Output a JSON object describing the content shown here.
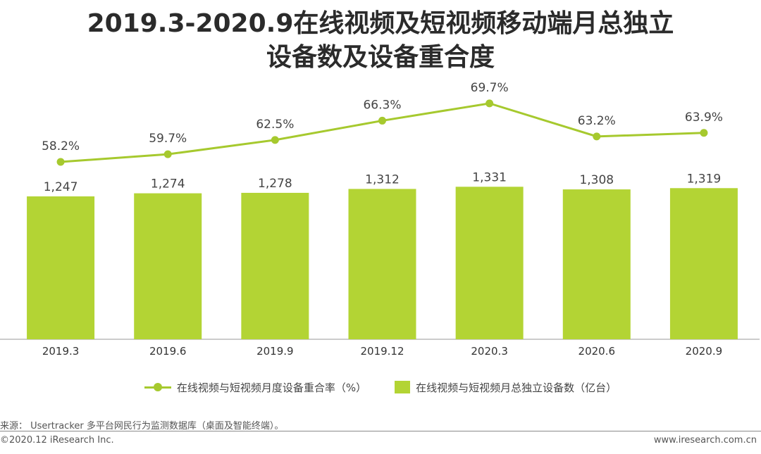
{
  "title": {
    "line1": "2019.3-2020.9在线视频及短视频移动端月总独立",
    "line2": "设备数及设备重合度"
  },
  "chart_data": {
    "type": "bar",
    "title": "2019.3-2020.9在线视频及短视频移动端月总独立设备数及设备重合度",
    "categories": [
      "2019.3",
      "2019.6",
      "2019.9",
      "2019.12",
      "2020.3",
      "2020.6",
      "2020.9"
    ],
    "bar_series": {
      "name": "在线视频与短视频月总独立设备数（亿台）",
      "values": [
        1247,
        1274,
        1278,
        1312,
        1331,
        1308,
        1319
      ],
      "labels": [
        "1,247",
        "1,274",
        "1,278",
        "1,312",
        "1,331",
        "1,308",
        "1,319"
      ],
      "color": "#b3d434"
    },
    "line_series": {
      "name": "在线视频与短视频月度设备重合率（%）",
      "values": [
        58.2,
        59.7,
        62.5,
        66.3,
        69.7,
        63.2,
        63.9
      ],
      "labels": [
        "58.2%",
        "59.7%",
        "62.5%",
        "66.3%",
        "69.7%",
        "63.2%",
        "63.9%"
      ],
      "color": "#a6c92e"
    },
    "xlabel": "",
    "ylabel": "",
    "grid": false,
    "legend_position": "bottom"
  },
  "legend": {
    "line_label": "在线视频与短视频月度设备重合率（%）",
    "bar_label": "在线视频与短视频月总独立设备数（亿台）"
  },
  "footer": {
    "source": "来源： Usertracker 多平台网民行为监测数据库（桌面及智能终端）。",
    "copyright": "©2020.12 iResearch Inc.",
    "website": "www.iresearch.com.cn"
  }
}
